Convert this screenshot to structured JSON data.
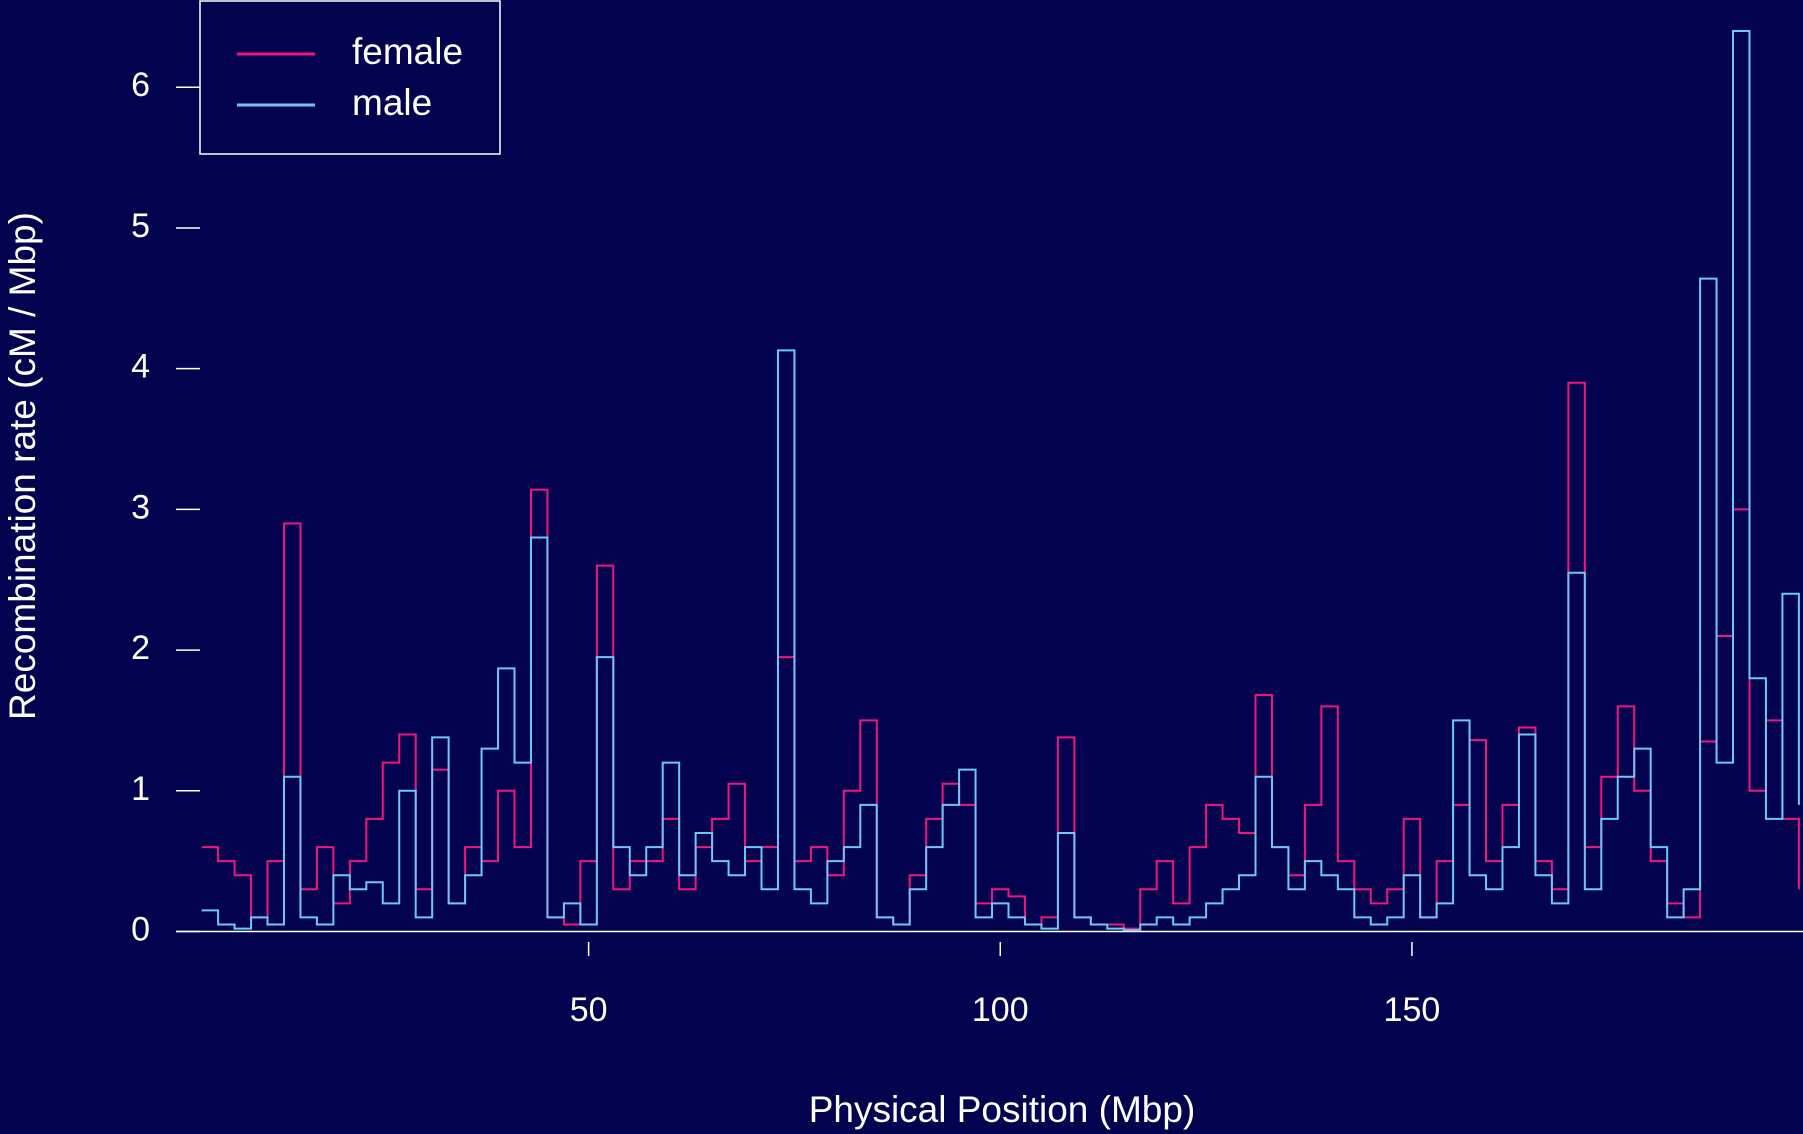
{
  "chart_data": {
    "type": "line",
    "step": true,
    "x_label": "Physical Position (Mbp)",
    "y_label": "Recombination rate (cM / Mbp)",
    "legend": "top-left",
    "xlim": [
      2.8,
      197.5
    ],
    "ylim": [
      0,
      6.62
    ],
    "xticks": [
      50,
      100,
      150
    ],
    "yticks": [
      0,
      1,
      2,
      3,
      4,
      5,
      6
    ],
    "x": [
      3,
      5,
      7,
      9,
      11,
      13,
      15,
      17,
      19,
      21,
      23,
      25,
      27,
      29,
      31,
      33,
      35,
      37,
      39,
      41,
      43,
      45,
      47,
      49,
      51,
      53,
      55,
      57,
      59,
      61,
      63,
      65,
      67,
      69,
      71,
      73,
      75,
      77,
      79,
      81,
      83,
      85,
      87,
      89,
      91,
      93,
      95,
      97,
      99,
      101,
      103,
      105,
      107,
      109,
      111,
      113,
      115,
      117,
      119,
      121,
      123,
      125,
      127,
      129,
      131,
      133,
      135,
      137,
      139,
      141,
      143,
      145,
      147,
      149,
      151,
      153,
      155,
      157,
      159,
      161,
      163,
      165,
      167,
      169,
      171,
      173,
      175,
      177,
      179,
      181,
      183,
      185,
      187,
      189,
      191,
      193,
      195,
      197
    ],
    "series": [
      {
        "name": "female",
        "color": "#f0167f",
        "values": [
          0.6,
          0.5,
          0.4,
          0.1,
          0.5,
          2.9,
          0.3,
          0.6,
          0.2,
          0.5,
          0.8,
          1.2,
          1.4,
          0.3,
          1.15,
          0.2,
          0.6,
          0.5,
          1.0,
          0.6,
          3.14,
          0.1,
          0.05,
          0.5,
          2.6,
          0.3,
          0.5,
          0.5,
          0.8,
          0.3,
          0.6,
          0.8,
          1.05,
          0.5,
          0.6,
          1.95,
          0.5,
          0.6,
          0.4,
          1.0,
          1.5,
          0.1,
          0.05,
          0.4,
          0.8,
          1.05,
          0.9,
          0.2,
          0.3,
          0.25,
          0.05,
          0.1,
          1.38,
          0.1,
          0.05,
          0.05,
          0.02,
          0.3,
          0.5,
          0.2,
          0.6,
          0.9,
          0.8,
          0.7,
          1.68,
          0.6,
          0.4,
          0.9,
          1.6,
          0.5,
          0.3,
          0.2,
          0.3,
          0.8,
          0.1,
          0.5,
          0.9,
          1.36,
          0.5,
          0.9,
          1.45,
          0.5,
          0.3,
          3.9,
          0.6,
          1.1,
          1.6,
          1.0,
          0.5,
          0.2,
          0.1,
          1.35,
          2.1,
          3.0,
          1.0,
          1.5,
          0.8,
          0.3
        ]
      },
      {
        "name": "male",
        "color": "#6ec8f5",
        "values": [
          0.15,
          0.05,
          0.02,
          0.1,
          0.05,
          1.1,
          0.1,
          0.05,
          0.4,
          0.3,
          0.35,
          0.2,
          1.0,
          0.1,
          1.38,
          0.2,
          0.4,
          1.3,
          1.87,
          1.2,
          2.8,
          0.1,
          0.2,
          0.05,
          1.95,
          0.6,
          0.4,
          0.6,
          1.2,
          0.4,
          0.7,
          0.5,
          0.4,
          0.6,
          0.3,
          4.13,
          0.3,
          0.2,
          0.5,
          0.6,
          0.9,
          0.1,
          0.05,
          0.3,
          0.6,
          0.9,
          1.15,
          0.1,
          0.2,
          0.1,
          0.05,
          0.02,
          0.7,
          0.1,
          0.05,
          0.02,
          0.01,
          0.05,
          0.1,
          0.05,
          0.1,
          0.2,
          0.3,
          0.4,
          1.1,
          0.6,
          0.3,
          0.5,
          0.4,
          0.3,
          0.1,
          0.05,
          0.1,
          0.4,
          0.1,
          0.2,
          1.5,
          0.4,
          0.3,
          0.6,
          1.4,
          0.4,
          0.2,
          2.55,
          0.3,
          0.8,
          1.1,
          1.3,
          0.6,
          0.1,
          0.3,
          4.64,
          1.2,
          6.4,
          1.8,
          0.8,
          2.4,
          0.9
        ]
      }
    ]
  }
}
